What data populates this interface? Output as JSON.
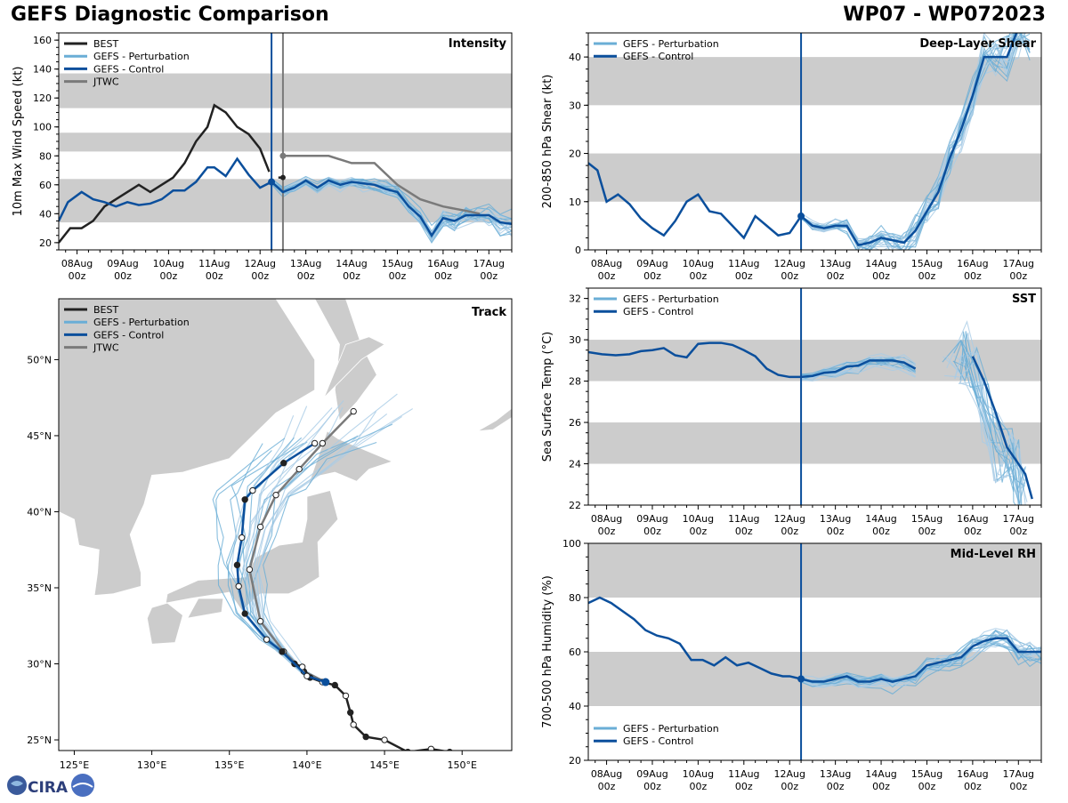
{
  "header": {
    "title": "GEFS Diagnostic Comparison",
    "storm_id": "WP07 - WP072023"
  },
  "logo": {
    "text": "CIRA"
  },
  "colors": {
    "best": "#222222",
    "perturbation": "#6aaed6",
    "perturbation_light": "#a9cce6",
    "control": "#0b4f9c",
    "jtwc": "#7a7a7a",
    "band": "#cccccc",
    "land": "#cccccc"
  },
  "time_ticks": [
    "08Aug",
    "09Aug",
    "10Aug",
    "11Aug",
    "12Aug",
    "13Aug",
    "14Aug",
    "15Aug",
    "16Aug",
    "17Aug"
  ],
  "time_tick_sub": "00z",
  "chart_data": [
    {
      "id": "intensity",
      "type": "line",
      "title": "Intensity",
      "ylabel": "10m Max Wind Speed (kt)",
      "xlabel": "",
      "x_range": [
        7.6,
        17.5
      ],
      "ylim": [
        15,
        165
      ],
      "yticks": [
        20,
        40,
        60,
        80,
        100,
        120,
        140,
        160
      ],
      "bands": [
        [
          34,
          64
        ],
        [
          83,
          96
        ],
        [
          113,
          137
        ]
      ],
      "init_time": 12.25,
      "jtwc_time": 12.5,
      "legend": [
        "BEST",
        "GEFS - Perturbation",
        "GEFS - Control",
        "JTWC"
      ],
      "best": {
        "x": [
          7.6,
          7.85,
          8.1,
          8.35,
          8.6,
          8.85,
          9.1,
          9.35,
          9.6,
          9.85,
          10.1,
          10.35,
          10.6,
          10.85,
          11.0,
          11.25,
          11.5,
          11.75,
          12.0,
          12.2
        ],
        "y": [
          20,
          30,
          30,
          35,
          45,
          50,
          55,
          60,
          55,
          60,
          65,
          75,
          90,
          100,
          115,
          110,
          100,
          95,
          85,
          69
        ]
      },
      "best_tail": {
        "x": [
          12.4,
          12.5
        ],
        "y": [
          65,
          65
        ]
      },
      "control": {
        "x": [
          7.6,
          7.8,
          8.1,
          8.35,
          8.6,
          8.85,
          9.1,
          9.35,
          9.6,
          9.85,
          10.1,
          10.35,
          10.6,
          10.85,
          11.0,
          11.25,
          11.5,
          11.75,
          12.0,
          12.25,
          12.5,
          12.75,
          13.0,
          13.25,
          13.5,
          13.75,
          14.0,
          14.25,
          14.5,
          14.75,
          15.0,
          15.25,
          15.5,
          15.75,
          16.0,
          16.25,
          16.5,
          16.75,
          17.0,
          17.25,
          17.5
        ],
        "y": [
          35,
          48,
          55,
          50,
          48,
          45,
          48,
          46,
          47,
          50,
          56,
          56,
          62,
          72,
          72,
          66,
          78,
          67,
          58,
          62,
          55,
          58,
          63,
          58,
          63,
          60,
          62,
          61,
          60,
          57,
          55,
          45,
          38,
          25,
          37,
          35,
          39,
          39,
          39,
          34,
          33
        ]
      },
      "control_marker": [
        12.25,
        62
      ],
      "jtwc": {
        "x": [
          12.5,
          13.0,
          13.5,
          14.0,
          14.5,
          15.0,
          15.5,
          16.0,
          16.5,
          16.8
        ],
        "y": [
          80,
          80,
          80,
          75,
          75,
          60,
          50,
          45,
          42,
          40
        ]
      },
      "perturbation_spread": [
        [
          55,
          70
        ],
        [
          40,
          55
        ],
        [
          20,
          35
        ]
      ]
    },
    {
      "id": "shear",
      "type": "line",
      "title": "Deep-Layer Shear",
      "ylabel": "200-850 hPa Shear (kt)",
      "xlabel": "",
      "x_range": [
        7.6,
        17.5
      ],
      "ylim": [
        0,
        45
      ],
      "yticks": [
        0,
        10,
        20,
        30,
        40
      ],
      "bands": [
        [
          10,
          20
        ],
        [
          30,
          40
        ]
      ],
      "init_time": 12.25,
      "legend": [
        "GEFS - Perturbation",
        "GEFS - Control"
      ],
      "control": {
        "x": [
          7.6,
          7.8,
          8.0,
          8.25,
          8.5,
          8.75,
          9.0,
          9.25,
          9.5,
          9.75,
          10.0,
          10.25,
          10.5,
          10.75,
          11.0,
          11.25,
          11.5,
          11.75,
          12.0,
          12.25,
          12.5,
          12.75,
          13.0,
          13.25,
          13.5,
          13.75,
          14.0,
          14.25,
          14.5,
          14.75,
          15.0,
          15.25,
          15.5,
          15.75,
          16.0,
          16.25,
          16.5,
          16.75,
          17.0,
          17.25
        ],
        "y": [
          18,
          16.5,
          10,
          11.5,
          9.5,
          6.5,
          4.5,
          3,
          6,
          10,
          11.5,
          8,
          7.5,
          5,
          2.5,
          7,
          5,
          3,
          3.5,
          7,
          5,
          4.5,
          5,
          5,
          1,
          1.5,
          2.5,
          2,
          1.5,
          4,
          8,
          12,
          19,
          25,
          32,
          40,
          40,
          40,
          46,
          46
        ]
      },
      "control_marker": [
        12.25,
        7
      ],
      "perturbation_spread": [
        [
          3,
          10
        ],
        [
          1,
          9
        ],
        [
          0.5,
          8
        ],
        [
          5,
          20
        ],
        [
          28,
          45
        ],
        [
          35,
          45
        ]
      ]
    },
    {
      "id": "sst",
      "type": "line",
      "title": "SST",
      "ylabel": "Sea Surface Temp (°C)",
      "xlabel": "",
      "x_range": [
        7.6,
        17.5
      ],
      "ylim": [
        22,
        32.5
      ],
      "yticks": [
        22,
        24,
        26,
        28,
        30,
        32
      ],
      "bands": [
        [
          24,
          26
        ],
        [
          28,
          30
        ]
      ],
      "init_time": 12.25,
      "legend": [
        "GEFS - Perturbation",
        "GEFS - Control"
      ],
      "control": {
        "x": [
          7.6,
          7.9,
          8.2,
          8.5,
          8.75,
          9.0,
          9.25,
          9.5,
          9.75,
          10.0,
          10.25,
          10.5,
          10.75,
          11.0,
          11.25,
          11.5,
          11.75,
          12.0,
          12.25,
          12.5,
          12.75,
          13.0,
          13.25,
          13.5,
          13.75,
          14.0,
          14.25,
          14.5,
          14.75
        ],
        "y": [
          29.4,
          29.3,
          29.25,
          29.3,
          29.45,
          29.5,
          29.6,
          29.25,
          29.15,
          29.8,
          29.85,
          29.85,
          29.75,
          29.5,
          29.2,
          28.6,
          28.3,
          28.2,
          28.2,
          28.25,
          28.4,
          28.45,
          28.7,
          28.75,
          29.0,
          29.0,
          29.0,
          28.9,
          28.6
        ]
      },
      "control_2": {
        "x": [
          16.0,
          16.25,
          16.5,
          16.75,
          17.0,
          17.15,
          17.3
        ],
        "y": [
          29.2,
          28.0,
          26.5,
          24.8,
          24.0,
          23.5,
          22.3
        ]
      },
      "perturbation_spread": [
        [
          28.0,
          29.0
        ],
        [
          22.0,
          29.5
        ]
      ]
    },
    {
      "id": "rh",
      "type": "line",
      "title": "Mid-Level RH",
      "ylabel": "700-500 hPa Humidity (%)",
      "xlabel": "",
      "x_range": [
        7.6,
        17.5
      ],
      "ylim": [
        20,
        100
      ],
      "yticks": [
        20,
        40,
        60,
        80,
        100
      ],
      "bands": [
        [
          40,
          60
        ],
        [
          80,
          100
        ]
      ],
      "init_time": 12.25,
      "legend": [
        "GEFS - Perturbation",
        "GEFS - Control"
      ],
      "control": {
        "x": [
          7.6,
          7.85,
          8.1,
          8.35,
          8.6,
          8.85,
          9.1,
          9.35,
          9.6,
          9.85,
          10.1,
          10.35,
          10.6,
          10.85,
          11.1,
          11.35,
          11.6,
          11.85,
          12.0,
          12.25,
          12.5,
          12.75,
          13.0,
          13.25,
          13.5,
          13.75,
          14.0,
          14.25,
          14.5,
          14.75,
          15.0,
          15.25,
          15.5,
          15.75,
          16.0,
          16.25,
          16.5,
          16.75,
          17.0,
          17.25,
          17.5
        ],
        "y": [
          78,
          80,
          78,
          75,
          72,
          68,
          66,
          65,
          63,
          57,
          57,
          55,
          58,
          55,
          56,
          54,
          52,
          51,
          51,
          50,
          49,
          49,
          50,
          51,
          49,
          49,
          50,
          49,
          50,
          51,
          55,
          56,
          57,
          58,
          62,
          64,
          65,
          65,
          60,
          60,
          60
        ]
      },
      "control_marker": [
        12.25,
        50
      ],
      "perturbation_spread": [
        [
          48,
          55
        ],
        [
          55,
          80
        ]
      ]
    },
    {
      "id": "track",
      "type": "scatter",
      "title": "Track",
      "xlabel": "",
      "ylabel": "",
      "xlim": [
        124.0,
        153.2
      ],
      "ylim": [
        24.3,
        54.0
      ],
      "xticks": [
        125,
        130,
        135,
        140,
        145,
        150
      ],
      "xtick_labels": [
        "125°E",
        "130°E",
        "135°E",
        "140°E",
        "145°E",
        "150°E"
      ],
      "yticks": [
        25,
        30,
        35,
        40,
        45,
        50
      ],
      "ytick_labels": [
        "25°N",
        "30°N",
        "35°N",
        "40°N",
        "45°N",
        "50°N"
      ],
      "legend": [
        "BEST",
        "GEFS - Perturbation",
        "GEFS - Control",
        "JTWC"
      ],
      "best": {
        "lon": [
          149.2,
          148.0,
          146.5,
          145.0,
          143.8,
          143.0,
          142.8,
          142.5,
          141.8,
          141.0,
          140.2,
          139.7,
          139.2
        ],
        "lat": [
          24.2,
          24.4,
          24.2,
          25.0,
          25.2,
          26.0,
          26.8,
          27.9,
          28.6,
          28.8,
          29.1,
          29.8,
          30.0
        ]
      },
      "control": {
        "lon": [
          141.2,
          140.0,
          138.4,
          137.4,
          136.0,
          135.6,
          135.5,
          135.8,
          136.0,
          136.5,
          138.5,
          140.5
        ],
        "lat": [
          28.8,
          29.2,
          30.8,
          31.6,
          33.3,
          35.1,
          36.5,
          38.3,
          40.8,
          41.4,
          43.2,
          44.5
        ]
      },
      "jtwc": {
        "lon": [
          141.2,
          139.8,
          138.5,
          137.0,
          136.3,
          137.0,
          138.0,
          139.5,
          141.0,
          143.0
        ],
        "lat": [
          28.8,
          29.5,
          30.8,
          32.8,
          36.2,
          39.0,
          41.1,
          42.8,
          44.5,
          46.6
        ]
      },
      "perturbation_members": 22
    }
  ]
}
